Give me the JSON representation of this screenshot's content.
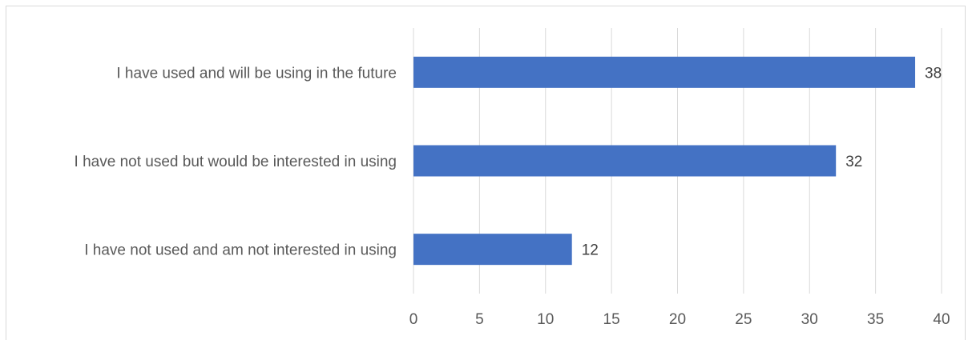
{
  "chart_data": {
    "type": "bar",
    "orientation": "horizontal",
    "categories": [
      "I have used and will be using in the future",
      "I have not used but would be interested in using",
      "I have not used and am not interested in using"
    ],
    "values": [
      38,
      32,
      12
    ],
    "data_labels": [
      "38",
      "32",
      "12"
    ],
    "xlim": [
      0,
      40
    ],
    "x_ticks": [
      0,
      5,
      10,
      15,
      20,
      25,
      30,
      35,
      40
    ],
    "x_tick_labels": [
      "0",
      "5",
      "10",
      "15",
      "20",
      "25",
      "30",
      "35",
      "40"
    ],
    "grid": true,
    "legend": "none",
    "bar_color": "#4472c4",
    "grid_color": "#d9d9d9",
    "title": "",
    "xlabel": "",
    "ylabel": ""
  }
}
